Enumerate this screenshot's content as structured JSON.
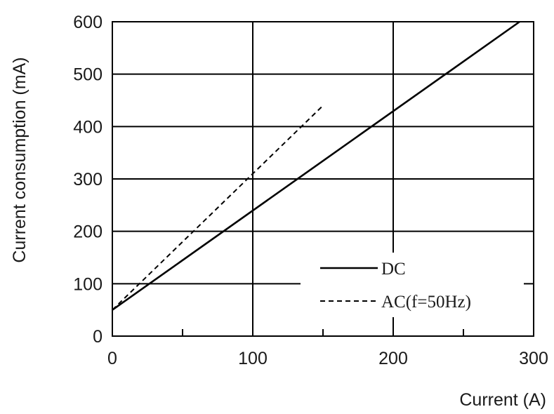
{
  "chart_data": {
    "type": "line",
    "title": "",
    "xlabel": "Current (A)",
    "ylabel": "Current consumption (mA)",
    "xlim": [
      0,
      300
    ],
    "ylim": [
      0,
      600
    ],
    "xticks": [
      0,
      100,
      200,
      300
    ],
    "yticks": [
      0,
      100,
      200,
      300,
      400,
      500,
      600
    ],
    "xtick_labels": [
      "0",
      "100",
      "200",
      "300"
    ],
    "ytick_labels": [
      "0",
      "100",
      "200",
      "300",
      "400",
      "500",
      "600"
    ],
    "grid": true,
    "legend_position": "bottom-right",
    "series": [
      {
        "name": "DC",
        "style": "solid",
        "color": "#000000",
        "x": [
          0,
          290
        ],
        "y": [
          50,
          600
        ]
      },
      {
        "name": "AC(f=50Hz)",
        "style": "dashed",
        "color": "#000000",
        "x": [
          0,
          150
        ],
        "y": [
          50,
          440
        ]
      }
    ]
  }
}
